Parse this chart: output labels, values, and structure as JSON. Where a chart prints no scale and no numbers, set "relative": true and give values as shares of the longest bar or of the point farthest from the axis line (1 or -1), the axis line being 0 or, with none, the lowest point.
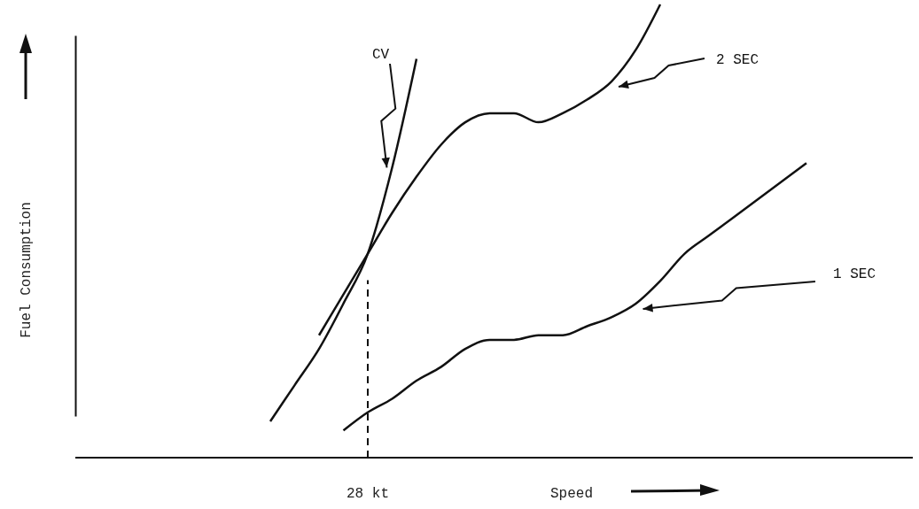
{
  "chart_data": {
    "type": "line",
    "relative": true,
    "xlabel": "Speed",
    "categories": [
      null,
      null,
      null,
      null,
      null,
      null,
      null,
      null,
      null,
      null,
      null,
      null,
      null,
      null,
      null,
      null,
      null,
      null,
      null,
      null,
      null,
      null,
      null
    ],
    "series": [
      {
        "name": "CV",
        "color": "#111111",
        "values": [
          0.08,
          0.16,
          0.24,
          0.34,
          0.45,
          0.64,
          0.88,
          null,
          null,
          null,
          null,
          null,
          null,
          null,
          null,
          null,
          null,
          null,
          null,
          null,
          null,
          null,
          null
        ]
      },
      {
        "name": "2 SEC",
        "color": "#111111",
        "values": [
          null,
          null,
          0.27,
          0.36,
          0.45,
          0.54,
          0.62,
          0.69,
          0.74,
          0.76,
          0.76,
          0.74,
          0.76,
          0.79,
          0.83,
          0.9,
          1.0,
          null,
          null,
          null,
          null,
          null,
          null
        ]
      },
      {
        "name": "1 SEC",
        "color": "#111111",
        "values": [
          null,
          null,
          null,
          0.06,
          0.1,
          0.13,
          0.17,
          0.2,
          0.24,
          0.26,
          0.26,
          0.27,
          0.27,
          0.29,
          0.31,
          0.34,
          0.39,
          0.45,
          0.49,
          0.53,
          0.57,
          0.61,
          0.65
        ]
      }
    ],
    "annotations": [
      "28 kt",
      "Fuel Consumption"
    ],
    "legend": false,
    "grid": false,
    "marker": "none",
    "line_style": "solid"
  }
}
